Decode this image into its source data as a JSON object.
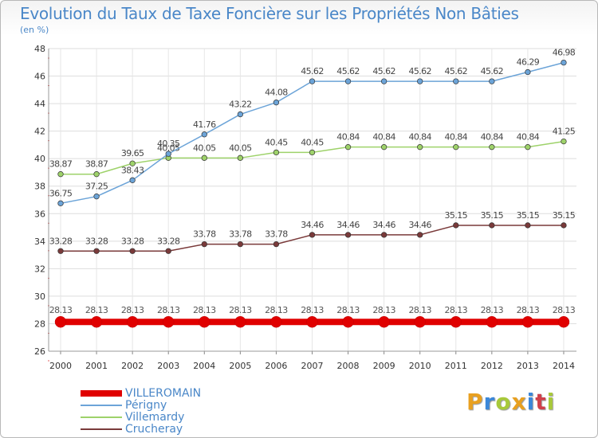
{
  "title": "Evolution du Taux de Taxe Foncière sur les Propriétés Non Bâties",
  "unit_label": "(en %)",
  "logo": {
    "text": "Proxiti",
    "letters": [
      {
        "ch": "P",
        "color": "#e8a020"
      },
      {
        "ch": "r",
        "color": "#3b87d9"
      },
      {
        "ch": "o",
        "color": "#a8c93a"
      },
      {
        "ch": "x",
        "color": "#e8a020"
      },
      {
        "ch": "i",
        "color": "#3b87d9"
      },
      {
        "ch": "t",
        "color": "#d0404a"
      },
      {
        "ch": "i",
        "color": "#a8c93a"
      }
    ]
  },
  "chart_data": {
    "type": "line",
    "title": "Evolution du Taux de Taxe Foncière sur les Propriétés Non Bâties",
    "ylabel": "(en %)",
    "xlabel": "",
    "x": [
      "2000",
      "2001",
      "2002",
      "2003",
      "2004",
      "2005",
      "2006",
      "2007",
      "2008",
      "2009",
      "2010",
      "2011",
      "2012",
      "2013",
      "2014"
    ],
    "ylim": [
      26,
      48
    ],
    "yticks": [
      26,
      28,
      30,
      32,
      34,
      36,
      38,
      40,
      42,
      44,
      46,
      48
    ],
    "grid": true,
    "legend_position": "bottom-left",
    "series": [
      {
        "name": "VILLEROMAIN",
        "color": "#e00000",
        "values": [
          28.13,
          28.13,
          28.13,
          28.13,
          28.13,
          28.13,
          28.13,
          28.13,
          28.13,
          28.13,
          28.13,
          28.13,
          28.13,
          28.13,
          28.13
        ],
        "labels": [
          "28.13",
          "28.13",
          "28.13",
          "28.13",
          "28.13",
          "28.13",
          "28.13",
          "28.13",
          "28.13",
          "28.13",
          "28.13",
          "28.13",
          "28.13",
          "28.13",
          "28.13"
        ]
      },
      {
        "name": "Périgny",
        "color": "#6ca4d8",
        "values": [
          36.75,
          37.25,
          38.43,
          40.35,
          41.76,
          43.22,
          44.08,
          45.62,
          45.62,
          45.62,
          45.62,
          45.62,
          45.62,
          46.29,
          46.98
        ],
        "labels": [
          "36.75",
          "37.25",
          "38.43",
          "40.35",
          "41.76",
          "43.22",
          "44.08",
          "45.62",
          "45.62",
          "45.62",
          "45.62",
          "45.62",
          "45.62",
          "46.29",
          "46.98"
        ]
      },
      {
        "name": "Villemardy",
        "color": "#9ed26a",
        "values": [
          38.87,
          38.87,
          39.65,
          40.05,
          40.05,
          40.05,
          40.45,
          40.45,
          40.84,
          40.84,
          40.84,
          40.84,
          40.84,
          40.84,
          41.25
        ],
        "labels": [
          "38.87",
          "38.87",
          "39.65",
          "40.05",
          "40.05",
          "40.05",
          "40.45",
          "40.45",
          "40.84",
          "40.84",
          "40.84",
          "40.84",
          "40.84",
          "40.84",
          "41.25"
        ]
      },
      {
        "name": "Crucheray",
        "color": "#7a3a3a",
        "values": [
          33.28,
          33.28,
          33.28,
          33.28,
          33.78,
          33.78,
          33.78,
          34.46,
          34.46,
          34.46,
          34.46,
          35.15,
          35.15,
          35.15,
          35.15
        ],
        "labels": [
          "33.28",
          "33.28",
          "33.28",
          "33.28",
          "33.78",
          "33.78",
          "33.78",
          "34.46",
          "34.46",
          "34.46",
          "34.46",
          "35.15",
          "35.15",
          "35.15",
          "35.15"
        ]
      }
    ]
  }
}
